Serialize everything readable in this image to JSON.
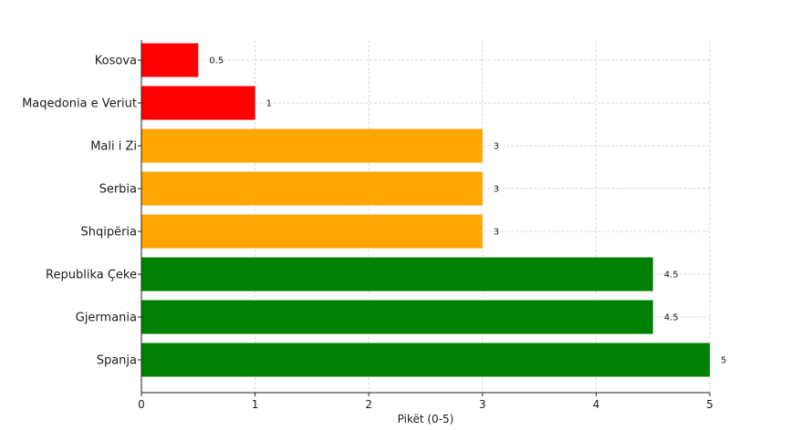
{
  "chart_data": {
    "type": "bar",
    "orientation": "horizontal",
    "categories": [
      "Kosova",
      "Maqedonia e Veriut",
      "Mali i Zi",
      "Serbia",
      "Shqipëria",
      "Republika Çeke",
      "Gjermania",
      "Spanja"
    ],
    "values": [
      0.5,
      1,
      3,
      3,
      3,
      4.5,
      4.5,
      5
    ],
    "value_labels": [
      "0.5",
      "1",
      "3",
      "3",
      "3",
      "4.5",
      "4.5",
      "5"
    ],
    "colors": [
      "#ff0000",
      "#ff0000",
      "#ffa500",
      "#ffa500",
      "#ffa500",
      "#008000",
      "#008000",
      "#008000"
    ],
    "xlabel": "Pikët (0-5)",
    "xlim": [
      0,
      5
    ],
    "xticks": [
      0,
      1,
      2,
      3,
      4,
      5
    ],
    "xtick_labels": [
      "0",
      "1",
      "2",
      "3",
      "4",
      "5"
    ],
    "grid": true
  }
}
